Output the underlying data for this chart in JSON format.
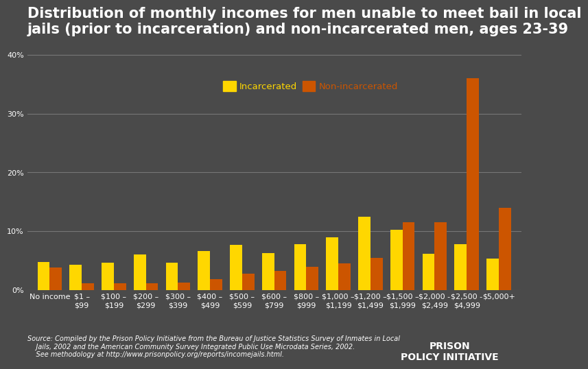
{
  "title": "Distribution of monthly incomes for men unable to meet bail in local\njails (prior to incarceration) and non-incarcerated men, ages 23-39",
  "categories": [
    "No income",
    "$1 –\n$99",
    "$100 –\n$199",
    "$200 –\n$299",
    "$300 –\n$399",
    "$400 –\n$499",
    "$500 –\n$599",
    "$600 –\n$799",
    "$800 –\n$999",
    "$1,000 –\n$1,199",
    "$1,200 –\n$1,499",
    "$1,500 –\n$1,999",
    "$2,000 -\n$2,499",
    "$2,500 -\n$4,999",
    "$5,000+"
  ],
  "incarcerated": [
    4.8,
    4.3,
    4.6,
    6.0,
    4.6,
    6.6,
    7.7,
    6.3,
    7.8,
    9.0,
    12.5,
    10.3,
    6.2,
    7.8,
    5.3
  ],
  "non_incarcerated": [
    3.8,
    1.2,
    1.2,
    1.2,
    1.3,
    1.8,
    2.8,
    3.2,
    3.9,
    4.5,
    5.5,
    11.5,
    11.5,
    36.0,
    14.0
  ],
  "incarcerated_color": "#FFD700",
  "non_incarcerated_color": "#CC5500",
  "background_color": "#4a4a4a",
  "plot_bg_color": "#4a4a4a",
  "text_color": "#ffffff",
  "grid_color": "#777777",
  "ylim": [
    0,
    42
  ],
  "yticks": [
    0,
    10,
    20,
    30,
    40
  ],
  "ytick_labels": [
    "0%",
    "10%",
    "20%",
    "30%",
    "40%"
  ],
  "source_text": "Source: Compiled by the Prison Policy Initiative from the Bureau of Justice Statistics Survey of Inmates in Local\n    Jails, 2002 and the American Community Survey Integrated Public Use Microdata Series, 2002.\n    See methodology at http://www.prisonpolicy.org/reports/incomejails.html.",
  "legend_label_incarcerated": "Incarcerated",
  "legend_label_non_incarcerated": "Non-incarcerated",
  "bar_width": 0.38,
  "title_fontsize": 15,
  "tick_fontsize": 8,
  "source_fontsize": 7
}
